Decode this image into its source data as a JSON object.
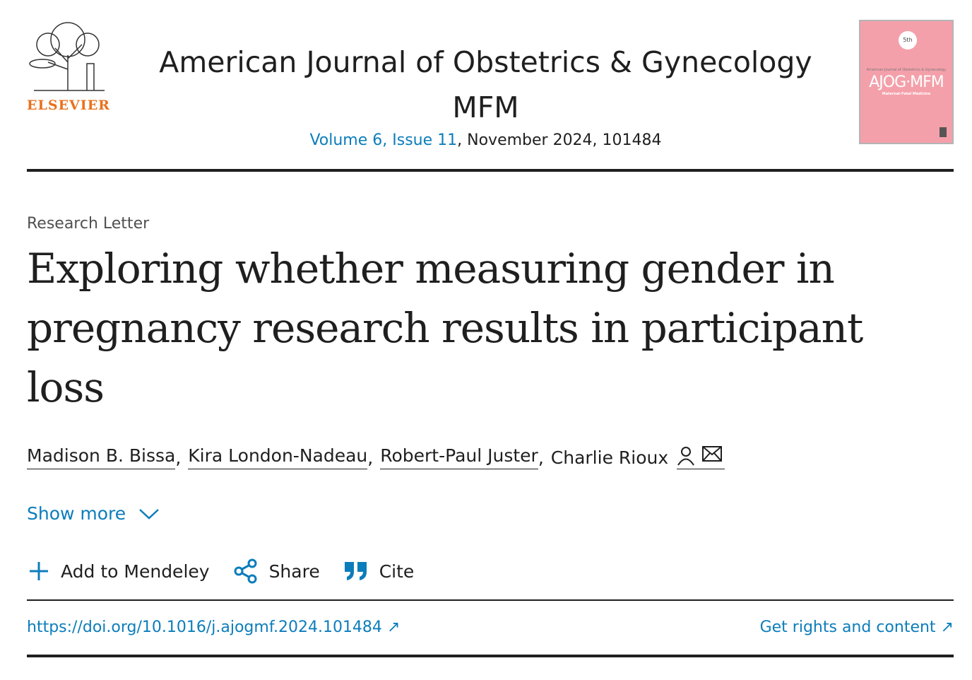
{
  "journal": {
    "title_line1": "American Journal of Obstetrics & Gynecology",
    "title_line2": "MFM",
    "issue_link": "Volume 6, Issue 11",
    "issue_rest": ", November 2024, 101484",
    "publisher": "ELSEVIER",
    "cover": {
      "badge": "5th",
      "small_title": "American Journal of Obstetrics & Gynecology",
      "logo": "AJOG·MFM",
      "subtitle": "Maternal-Fetal Medicine"
    }
  },
  "article": {
    "type": "Research Letter",
    "title": "Exploring whether measuring gender in pregnancy research results in participant loss",
    "authors": [
      "Madison B. Bissa",
      "Kira London-Nadeau",
      "Robert-Paul Juster",
      "Charlie Rioux"
    ]
  },
  "show_more": "Show more",
  "actions": {
    "mendeley": "Add to Mendeley",
    "share": "Share",
    "cite": "Cite"
  },
  "links": {
    "doi": "https://doi.org/10.1016/j.ajogmf.2024.101484",
    "rights": "Get rights and content"
  },
  "colors": {
    "link": "#0c7dbb",
    "publisher": "#e9711c",
    "cover": "#f4a0aa"
  }
}
